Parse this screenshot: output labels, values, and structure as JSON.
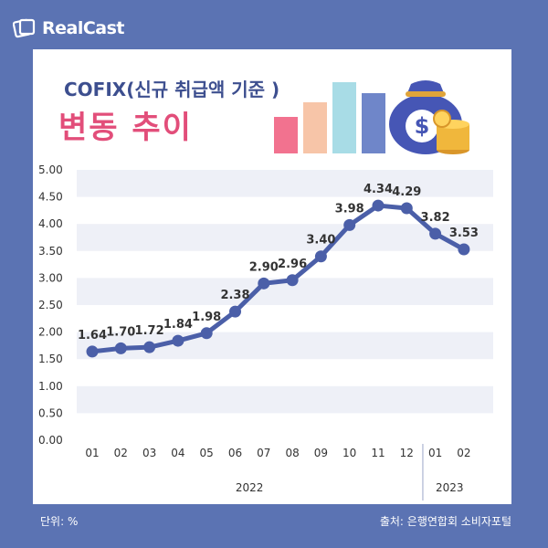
{
  "brand": {
    "name": "RealCast"
  },
  "header": {
    "title_line1": "COFIX(신규 취급액 기준 )",
    "title_line2": "변동 추이"
  },
  "footer": {
    "unit": "단위: %",
    "source": "출처: 은행연합회 소비자포털"
  },
  "colors": {
    "background": "#5b73b3",
    "line": "#4b5fa8",
    "band": "#eef0f7",
    "title_pink": "#e24e7a",
    "title_navy": "#3d4f8f"
  },
  "icons": [
    "logo-icon",
    "money-bag-icon",
    "coin-stack-icon",
    "mini-bar-chart-icon"
  ],
  "chart_data": {
    "type": "line",
    "categories": [
      "01",
      "02",
      "03",
      "04",
      "05",
      "06",
      "07",
      "08",
      "09",
      "10",
      "11",
      "12",
      "01",
      "02"
    ],
    "year_groups": [
      {
        "label": "2022",
        "from": 0,
        "to": 11
      },
      {
        "label": "2023",
        "from": 12,
        "to": 13
      }
    ],
    "series": [
      {
        "values": [
          1.64,
          1.7,
          1.72,
          1.84,
          1.98,
          2.38,
          2.9,
          2.96,
          3.4,
          3.98,
          4.34,
          4.29,
          3.82,
          3.53
        ]
      }
    ],
    "data_labels": [
      "1.64",
      "1.70",
      "1.72",
      "1.84",
      "1.98",
      "2.38",
      "2.90",
      "2.96",
      "3.40",
      "3.98",
      "4.34",
      "4.29",
      "3.82",
      "3.53"
    ],
    "y_ticks": [
      "0.00",
      "0.50",
      "1.00",
      "1.50",
      "2.00",
      "2.50",
      "3.00",
      "3.50",
      "4.00",
      "4.50",
      "5.00"
    ],
    "ylim": [
      0,
      5
    ],
    "grid": "alternating horizontal bands"
  }
}
